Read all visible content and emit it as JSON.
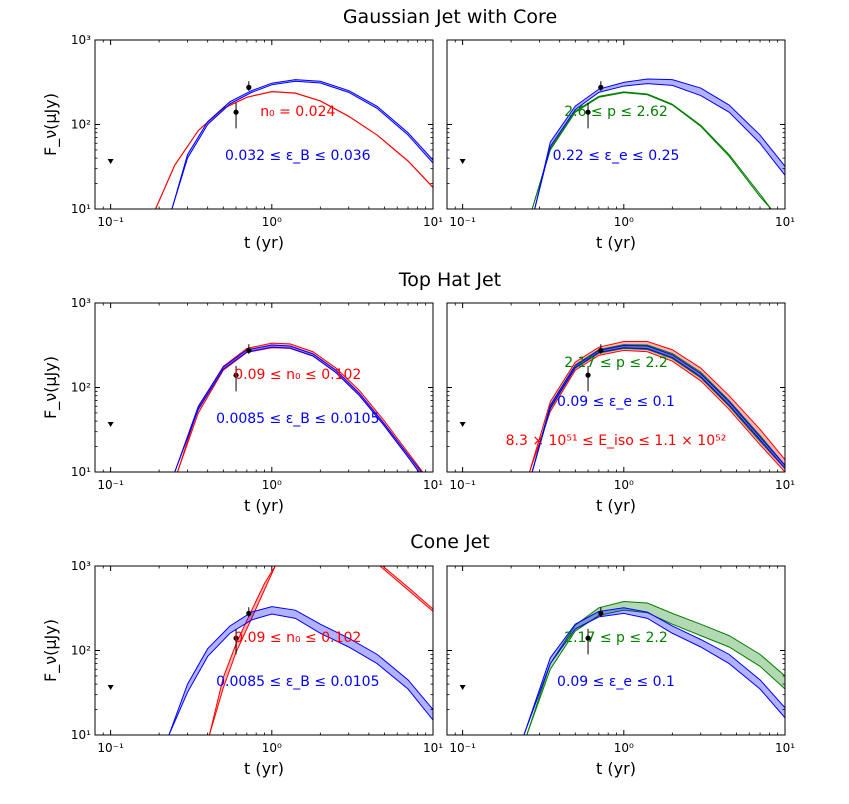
{
  "figure": {
    "row_titles": [
      "Gaussian Jet with Core",
      "Top Hat Jet",
      "Cone Jet"
    ],
    "ylabel": "F_ν(μJy)",
    "xlabel": "t (yr)",
    "x_ticks": [
      "10⁻¹",
      "10⁰",
      "10¹"
    ],
    "y_ticks": [
      "10¹",
      "10²",
      "10³"
    ]
  },
  "colors": {
    "red": "#ff0000",
    "blue": "#0000ff",
    "green": "#008000",
    "black": "#000000"
  },
  "chart_data": [
    {
      "type": "line",
      "row": 0,
      "col": 0,
      "xscale": "log",
      "yscale": "log",
      "xlim": [
        0.08,
        10
      ],
      "ylim": [
        10,
        1000
      ],
      "xlabel": "t (yr)",
      "ylabel": "F_ν(μJy)",
      "observations": [
        {
          "t": 0.1,
          "flux": 37,
          "upper_limit": true
        },
        {
          "t": 0.6,
          "flux": 140,
          "err_low": 50,
          "err_high": 40
        },
        {
          "t": 0.72,
          "flux": 275,
          "err_low": 25,
          "err_high": 50
        }
      ],
      "series": [
        {
          "color": "red",
          "band": false,
          "t": [
            0.19,
            0.25,
            0.35,
            0.5,
            0.7,
            1.0,
            1.4,
            2.0,
            3.0,
            4.5,
            7.0,
            10
          ],
          "y": [
            10,
            33,
            85,
            155,
            210,
            245,
            235,
            190,
            125,
            75,
            37,
            18
          ]
        },
        {
          "color": "blue",
          "band": true,
          "t": [
            0.24,
            0.3,
            0.4,
            0.55,
            0.75,
            1.0,
            1.4,
            2.0,
            3.0,
            4.5,
            7.0,
            10
          ],
          "y": [
            10,
            40,
            100,
            175,
            240,
            295,
            325,
            310,
            240,
            155,
            75,
            35
          ],
          "y2": [
            10,
            44,
            108,
            186,
            252,
            308,
            340,
            325,
            252,
            164,
            80,
            38
          ]
        }
      ],
      "annotations": [
        {
          "text": "n₀ = 0.024",
          "color": "red"
        },
        {
          "text": "0.032 ≤ ε_B ≤ 0.036",
          "color": "blue"
        }
      ]
    },
    {
      "type": "line",
      "row": 0,
      "col": 1,
      "xscale": "log",
      "yscale": "log",
      "xlim": [
        0.08,
        10
      ],
      "ylim": [
        10,
        1000
      ],
      "xlabel": "t (yr)",
      "ylabel": "",
      "observations": [
        {
          "t": 0.1,
          "flux": 37,
          "upper_limit": true
        },
        {
          "t": 0.6,
          "flux": 140,
          "err_low": 50,
          "err_high": 40
        },
        {
          "t": 0.72,
          "flux": 275,
          "err_low": 25,
          "err_high": 50
        }
      ],
      "series": [
        {
          "color": "green",
          "band": true,
          "t": [
            0.27,
            0.35,
            0.5,
            0.7,
            1.0,
            1.4,
            2.0,
            3.0,
            4.5,
            7.0,
            8.2
          ],
          "y": [
            10,
            50,
            140,
            210,
            238,
            225,
            170,
            95,
            42,
            14,
            10
          ],
          "y2": [
            10,
            52,
            144,
            215,
            243,
            230,
            174,
            98,
            44,
            15,
            10
          ]
        },
        {
          "color": "blue",
          "band": true,
          "t": [
            0.28,
            0.35,
            0.5,
            0.7,
            1.0,
            1.4,
            2.0,
            3.0,
            4.5,
            7.0,
            10
          ],
          "y": [
            10,
            55,
            150,
            240,
            285,
            305,
            290,
            220,
            140,
            60,
            25
          ],
          "y2": [
            10,
            62,
            165,
            262,
            315,
            345,
            340,
            270,
            170,
            75,
            32
          ]
        }
      ],
      "annotations": [
        {
          "text": "2.6 ≤ p ≤ 2.62",
          "color": "green"
        },
        {
          "text": "0.22 ≤ ε_e ≤ 0.25",
          "color": "blue"
        }
      ]
    },
    {
      "type": "line",
      "row": 1,
      "col": 0,
      "xscale": "log",
      "yscale": "log",
      "xlim": [
        0.08,
        10
      ],
      "ylim": [
        10,
        1000
      ],
      "xlabel": "t (yr)",
      "ylabel": "F_ν(μJy)",
      "observations": [
        {
          "t": 0.1,
          "flux": 37,
          "upper_limit": true
        },
        {
          "t": 0.6,
          "flux": 140,
          "err_low": 50,
          "err_high": 40
        },
        {
          "t": 0.72,
          "flux": 275,
          "err_low": 25,
          "err_high": 50
        }
      ],
      "series": [
        {
          "color": "red",
          "band": true,
          "t": [
            0.26,
            0.35,
            0.5,
            0.7,
            1.0,
            1.3,
            1.8,
            2.5,
            3.5,
            5.0,
            7.0,
            9.0
          ],
          "y": [
            10,
            50,
            160,
            260,
            295,
            290,
            235,
            150,
            80,
            35,
            15,
            8
          ],
          "y2": [
            10,
            58,
            178,
            290,
            335,
            328,
            265,
            170,
            92,
            40,
            17,
            9
          ]
        },
        {
          "color": "blue",
          "band": true,
          "t": [
            0.25,
            0.35,
            0.5,
            0.7,
            1.0,
            1.3,
            1.8,
            2.5,
            3.5,
            5.0,
            7.0,
            8.5
          ],
          "y": [
            10,
            55,
            165,
            262,
            300,
            292,
            236,
            150,
            80,
            35,
            15,
            9
          ],
          "y2": [
            10,
            60,
            175,
            278,
            318,
            310,
            250,
            160,
            85,
            37,
            16,
            10
          ]
        }
      ],
      "annotations": [
        {
          "text": "0.09 ≤ n₀ ≤ 0.102",
          "color": "red"
        },
        {
          "text": "0.0085 ≤ ε_B ≤ 0.0105",
          "color": "blue"
        }
      ]
    },
    {
      "type": "line",
      "row": 1,
      "col": 1,
      "xscale": "log",
      "yscale": "log",
      "xlim": [
        0.08,
        10
      ],
      "ylim": [
        10,
        1000
      ],
      "xlabel": "t (yr)",
      "ylabel": "",
      "observations": [
        {
          "t": 0.1,
          "flux": 37,
          "upper_limit": true
        },
        {
          "t": 0.6,
          "flux": 140,
          "err_low": 50,
          "err_high": 40
        },
        {
          "t": 0.72,
          "flux": 275,
          "err_low": 25,
          "err_high": 50
        }
      ],
      "series": [
        {
          "color": "red",
          "band": true,
          "t": [
            0.26,
            0.35,
            0.5,
            0.7,
            1.0,
            1.4,
            2.0,
            3.0,
            4.5,
            7.0,
            10
          ],
          "y": [
            10,
            52,
            160,
            240,
            275,
            265,
            205,
            120,
            55,
            21,
            10
          ],
          "y2": [
            10,
            68,
            200,
            300,
            350,
            350,
            280,
            170,
            80,
            32,
            14
          ]
        },
        {
          "color": "green",
          "band": true,
          "t": [
            0.27,
            0.35,
            0.5,
            0.7,
            1.0,
            1.4,
            2.0,
            3.0,
            4.5,
            7.0,
            10
          ],
          "y": [
            10,
            56,
            170,
            255,
            290,
            282,
            220,
            130,
            60,
            23,
            11
          ],
          "y2": [
            10,
            62,
            185,
            280,
            322,
            318,
            252,
            152,
            70,
            27,
            12
          ]
        },
        {
          "color": "blue",
          "band": true,
          "t": [
            0.27,
            0.35,
            0.5,
            0.7,
            1.0,
            1.4,
            2.0,
            3.0,
            4.5,
            7.0,
            10
          ],
          "y": [
            10,
            57,
            172,
            260,
            295,
            288,
            226,
            134,
            62,
            24,
            11
          ],
          "y2": [
            10,
            61,
            182,
            274,
            314,
            310,
            244,
            146,
            68,
            26,
            12
          ]
        }
      ],
      "annotations": [
        {
          "text": "2.17 ≤ p ≤ 2.2",
          "color": "green"
        },
        {
          "text": "0.09 ≤ ε_e ≤ 0.1",
          "color": "blue"
        },
        {
          "text": "8.3 × 10⁵¹ ≤ E_iso ≤ 1.1 × 10⁵²",
          "color": "red"
        }
      ]
    },
    {
      "type": "line",
      "row": 2,
      "col": 0,
      "xscale": "log",
      "yscale": "log",
      "xlim": [
        0.08,
        10
      ],
      "ylim": [
        10,
        1000
      ],
      "xlabel": "t (yr)",
      "ylabel": "F_ν(μJy)",
      "observations": [
        {
          "t": 0.1,
          "flux": 37,
          "upper_limit": true
        },
        {
          "t": 0.6,
          "flux": 140,
          "err_low": 50,
          "err_high": 40
        },
        {
          "t": 0.72,
          "flux": 275,
          "err_low": 25,
          "err_high": 50
        }
      ],
      "series": [
        {
          "color": "red",
          "band": true,
          "t": [
            0.41,
            0.5,
            0.6,
            0.75,
            0.9,
            1.05,
            1.3,
            1.8,
            2.5,
            3.5,
            5.0,
            7.0,
            10
          ],
          "y": [
            10,
            36,
            95,
            240,
            520,
            1000,
            1800,
            2500,
            2400,
            1600,
            900,
            520,
            290
          ],
          "y2": [
            10,
            48,
            120,
            300,
            620,
            1000,
            1900,
            2600,
            2500,
            1700,
            960,
            560,
            310
          ]
        },
        {
          "color": "blue",
          "band": true,
          "t": [
            0.23,
            0.3,
            0.4,
            0.55,
            0.75,
            1.0,
            1.4,
            2.0,
            3.0,
            4.5,
            7.0,
            10
          ],
          "y": [
            10,
            32,
            85,
            160,
            230,
            270,
            240,
            160,
            110,
            70,
            35,
            15
          ],
          "y2": [
            10,
            40,
            105,
            195,
            285,
            330,
            300,
            205,
            140,
            90,
            45,
            20
          ]
        }
      ],
      "annotations": [
        {
          "text": "0.09 ≤ n₀ ≤ 0.102",
          "color": "red"
        },
        {
          "text": "0.0085 ≤ ε_B ≤ 0.0105",
          "color": "blue"
        }
      ]
    },
    {
      "type": "line",
      "row": 2,
      "col": 1,
      "xscale": "log",
      "yscale": "log",
      "xlim": [
        0.08,
        10
      ],
      "ylim": [
        10,
        1000
      ],
      "xlabel": "t (yr)",
      "ylabel": "",
      "observations": [
        {
          "t": 0.1,
          "flux": 37,
          "upper_limit": true
        },
        {
          "t": 0.6,
          "flux": 140,
          "err_low": 50,
          "err_high": 40
        },
        {
          "t": 0.72,
          "flux": 275,
          "err_low": 25,
          "err_high": 50
        }
      ],
      "series": [
        {
          "color": "green",
          "band": true,
          "t": [
            0.25,
            0.35,
            0.5,
            0.7,
            1.0,
            1.4,
            2.0,
            3.0,
            4.5,
            7.0,
            10
          ],
          "y": [
            10,
            60,
            170,
            260,
            300,
            280,
            205,
            150,
            110,
            65,
            35
          ],
          "y2": [
            10,
            70,
            200,
            320,
            380,
            365,
            275,
            205,
            150,
            90,
            50
          ]
        },
        {
          "color": "blue",
          "band": true,
          "t": [
            0.24,
            0.35,
            0.5,
            0.7,
            1.0,
            1.4,
            2.0,
            3.0,
            4.5,
            7.0,
            10
          ],
          "y": [
            10,
            70,
            180,
            250,
            275,
            240,
            160,
            110,
            70,
            35,
            16
          ],
          "y2": [
            10,
            82,
            205,
            290,
            320,
            285,
            195,
            135,
            90,
            45,
            21
          ]
        }
      ],
      "annotations": [
        {
          "text": "2.17 ≤ p ≤ 2.2",
          "color": "green"
        },
        {
          "text": "0.09 ≤ ε_e ≤ 0.1",
          "color": "blue"
        }
      ]
    }
  ]
}
